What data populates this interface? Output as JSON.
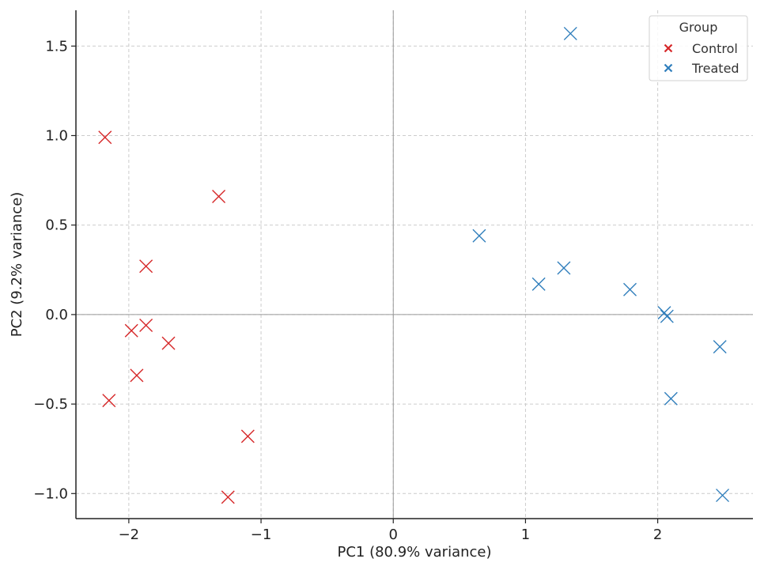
{
  "chart_data": {
    "type": "scatter",
    "xlabel": "PC1 (80.9% variance)",
    "ylabel": "PC2 (9.2% variance)",
    "xlim": [
      -2.4,
      2.72
    ],
    "ylim": [
      -1.14,
      1.7
    ],
    "xticks": [
      -2,
      -1,
      0,
      1,
      2
    ],
    "xtick_labels": [
      "−2",
      "−1",
      "0",
      "1",
      "2"
    ],
    "yticks": [
      -1.0,
      -0.5,
      0.0,
      0.5,
      1.0,
      1.5
    ],
    "ytick_labels": [
      "−1.0",
      "−0.5",
      "0.0",
      "0.5",
      "1.0",
      "1.5"
    ],
    "grid": true,
    "reference_lines": {
      "x": 0,
      "y": 0
    },
    "legend": {
      "title": "Group",
      "placement": "top-right"
    },
    "series": [
      {
        "name": "Control",
        "color": "#d62728",
        "marker": "x",
        "points": [
          {
            "x": -2.18,
            "y": 0.99
          },
          {
            "x": -1.32,
            "y": 0.66
          },
          {
            "x": -1.87,
            "y": 0.27
          },
          {
            "x": -1.98,
            "y": -0.09
          },
          {
            "x": -1.87,
            "y": -0.06
          },
          {
            "x": -1.7,
            "y": -0.16
          },
          {
            "x": -1.94,
            "y": -0.34
          },
          {
            "x": -2.15,
            "y": -0.48
          },
          {
            "x": -1.1,
            "y": -0.68
          },
          {
            "x": -1.25,
            "y": -1.02
          }
        ]
      },
      {
        "name": "Treated",
        "color": "#2f7ebc",
        "marker": "x",
        "points": [
          {
            "x": 1.34,
            "y": 1.57
          },
          {
            "x": 0.65,
            "y": 0.44
          },
          {
            "x": 1.1,
            "y": 0.17
          },
          {
            "x": 1.29,
            "y": 0.26
          },
          {
            "x": 1.79,
            "y": 0.14
          },
          {
            "x": 2.05,
            "y": 0.01
          },
          {
            "x": 2.07,
            "y": -0.01
          },
          {
            "x": 2.47,
            "y": -0.18
          },
          {
            "x": 2.1,
            "y": -0.47
          },
          {
            "x": 2.49,
            "y": -1.01
          }
        ]
      }
    ]
  }
}
